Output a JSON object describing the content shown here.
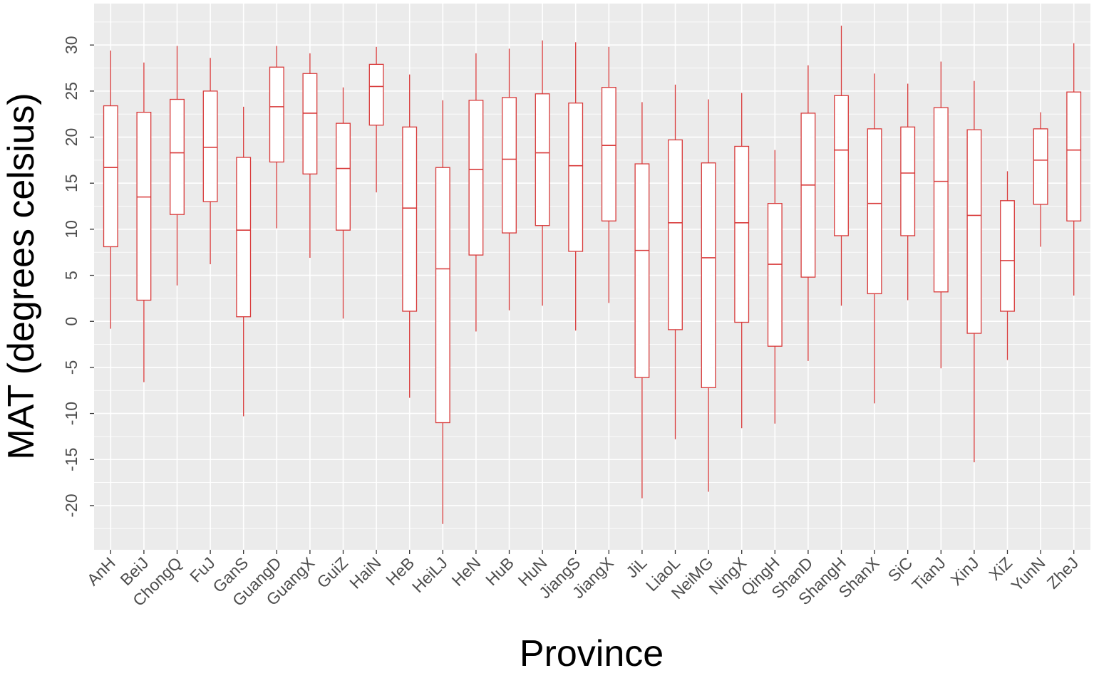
{
  "chart_data": {
    "type": "boxplot",
    "title": "",
    "xlabel": "Province",
    "ylabel": "MAT (degrees celsius)",
    "ylim": [
      -24.8,
      34.5
    ],
    "yticks": [
      -20,
      -15,
      -10,
      -5,
      0,
      5,
      10,
      15,
      20,
      25,
      30
    ],
    "grid": true,
    "legend": "none",
    "colors": {
      "box": "#d83a3a",
      "panel": "#ebebeb",
      "grid": "#ffffff",
      "fill": "#ffffff"
    },
    "categories": [
      "AnH",
      "BeiJ",
      "ChongQ",
      "FuJ",
      "GanS",
      "GuangD",
      "GuangX",
      "GuiZ",
      "HaiN",
      "HeB",
      "HeiLJ",
      "HeN",
      "HuB",
      "HuN",
      "JiangS",
      "JiangX",
      "JiL",
      "LiaoL",
      "NeiMG",
      "NingX",
      "QingH",
      "ShanD",
      "ShangH",
      "ShanX",
      "SiC",
      "TianJ",
      "XinJ",
      "XiZ",
      "YunN",
      "ZheJ"
    ],
    "boxes": [
      {
        "category": "AnH",
        "min": -0.8,
        "q1": 8.1,
        "median": 16.7,
        "q3": 23.4,
        "max": 29.4
      },
      {
        "category": "BeiJ",
        "min": -6.6,
        "q1": 2.3,
        "median": 13.5,
        "q3": 22.7,
        "max": 28.1
      },
      {
        "category": "ChongQ",
        "min": 3.9,
        "q1": 11.6,
        "median": 18.3,
        "q3": 24.1,
        "max": 29.9
      },
      {
        "category": "FuJ",
        "min": 6.2,
        "q1": 13.0,
        "median": 18.9,
        "q3": 25.0,
        "max": 28.6
      },
      {
        "category": "GanS",
        "min": -10.3,
        "q1": 0.5,
        "median": 9.9,
        "q3": 17.8,
        "max": 23.3
      },
      {
        "category": "GuangD",
        "min": 10.1,
        "q1": 17.3,
        "median": 23.3,
        "q3": 27.6,
        "max": 29.9
      },
      {
        "category": "GuangX",
        "min": 6.9,
        "q1": 16.0,
        "median": 22.6,
        "q3": 26.9,
        "max": 29.1
      },
      {
        "category": "GuiZ",
        "min": 0.3,
        "q1": 9.9,
        "median": 16.6,
        "q3": 21.5,
        "max": 25.4
      },
      {
        "category": "HaiN",
        "min": 14.0,
        "q1": 21.3,
        "median": 25.5,
        "q3": 27.9,
        "max": 29.8
      },
      {
        "category": "HeB",
        "min": -8.3,
        "q1": 1.1,
        "median": 12.3,
        "q3": 21.1,
        "max": 26.8
      },
      {
        "category": "HeiLJ",
        "min": -22.0,
        "q1": -11.0,
        "median": 5.7,
        "q3": 16.7,
        "max": 24.0
      },
      {
        "category": "HeN",
        "min": -1.1,
        "q1": 7.2,
        "median": 16.5,
        "q3": 24.0,
        "max": 29.1
      },
      {
        "category": "HuB",
        "min": 1.2,
        "q1": 9.6,
        "median": 17.6,
        "q3": 24.3,
        "max": 29.6
      },
      {
        "category": "HuN",
        "min": 1.7,
        "q1": 10.4,
        "median": 18.3,
        "q3": 24.7,
        "max": 30.5
      },
      {
        "category": "JiangS",
        "min": -1.0,
        "q1": 7.6,
        "median": 16.9,
        "q3": 23.7,
        "max": 30.3
      },
      {
        "category": "JiangX",
        "min": 2.0,
        "q1": 10.9,
        "median": 19.1,
        "q3": 25.4,
        "max": 29.8
      },
      {
        "category": "JiL",
        "min": -19.2,
        "q1": -6.1,
        "median": 7.7,
        "q3": 17.1,
        "max": 23.8
      },
      {
        "category": "LiaoL",
        "min": -12.8,
        "q1": -0.9,
        "median": 10.7,
        "q3": 19.7,
        "max": 25.7
      },
      {
        "category": "NeiMG",
        "min": -18.5,
        "q1": -7.2,
        "median": 6.9,
        "q3": 17.2,
        "max": 24.1
      },
      {
        "category": "NingX",
        "min": -11.6,
        "q1": -0.1,
        "median": 10.7,
        "q3": 19.0,
        "max": 24.8
      },
      {
        "category": "QingH",
        "min": -11.1,
        "q1": -2.7,
        "median": 6.2,
        "q3": 12.8,
        "max": 18.6
      },
      {
        "category": "ShanD",
        "min": -4.3,
        "q1": 4.8,
        "median": 14.8,
        "q3": 22.6,
        "max": 27.8
      },
      {
        "category": "ShangH",
        "min": 1.7,
        "q1": 9.3,
        "median": 18.6,
        "q3": 24.5,
        "max": 32.1
      },
      {
        "category": "ShanX",
        "min": -8.9,
        "q1": 3.0,
        "median": 12.8,
        "q3": 20.9,
        "max": 26.9
      },
      {
        "category": "SiC",
        "min": 2.3,
        "q1": 9.3,
        "median": 16.1,
        "q3": 21.1,
        "max": 25.8
      },
      {
        "category": "TianJ",
        "min": -5.1,
        "q1": 3.2,
        "median": 15.2,
        "q3": 23.2,
        "max": 28.2
      },
      {
        "category": "XinJ",
        "min": -15.3,
        "q1": -1.3,
        "median": 11.5,
        "q3": 20.8,
        "max": 26.1
      },
      {
        "category": "XiZ",
        "min": -4.2,
        "q1": 1.1,
        "median": 6.6,
        "q3": 13.1,
        "max": 16.3
      },
      {
        "category": "YunN",
        "min": 8.1,
        "q1": 12.7,
        "median": 17.5,
        "q3": 20.9,
        "max": 22.7
      },
      {
        "category": "ZheJ",
        "min": 2.8,
        "q1": 10.9,
        "median": 18.6,
        "q3": 24.9,
        "max": 30.2
      }
    ]
  }
}
